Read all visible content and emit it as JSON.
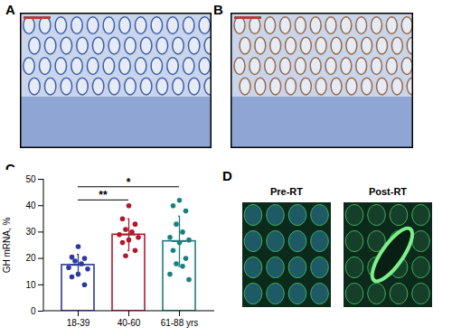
{
  "panel_labels": [
    "A",
    "B",
    "C",
    "D"
  ],
  "panel_D_titles": [
    "Pre-RT",
    "Post-RT"
  ],
  "chart_data": {
    "type": "bar",
    "categories": [
      "18-39",
      "40-60",
      "61-88 yrs"
    ],
    "values": [
      17.5,
      29,
      26.5
    ],
    "error": [
      4,
      6,
      9.5
    ],
    "colors": [
      "#2b3a9b",
      "#b2182b",
      "#1b7f7f"
    ],
    "points": [
      [
        24.5,
        20.5,
        20,
        19,
        18,
        16.5,
        16,
        14,
        13,
        10
      ],
      [
        40,
        35,
        33,
        31,
        30,
        29,
        28,
        27,
        26,
        23,
        21
      ],
      [
        42,
        40,
        38,
        33,
        30,
        28,
        27,
        26,
        23,
        20,
        18,
        17,
        14,
        12
      ]
    ],
    "significance": [
      {
        "from": "18-39",
        "to": "40-60",
        "label": "**"
      },
      {
        "from": "18-39",
        "to": "61-88 yrs",
        "label": "*"
      }
    ],
    "y_label": "GH mRNA, %",
    "ylim": [
      0,
      50
    ],
    "yticks": [
      0,
      10,
      20,
      30,
      40,
      50
    ]
  }
}
